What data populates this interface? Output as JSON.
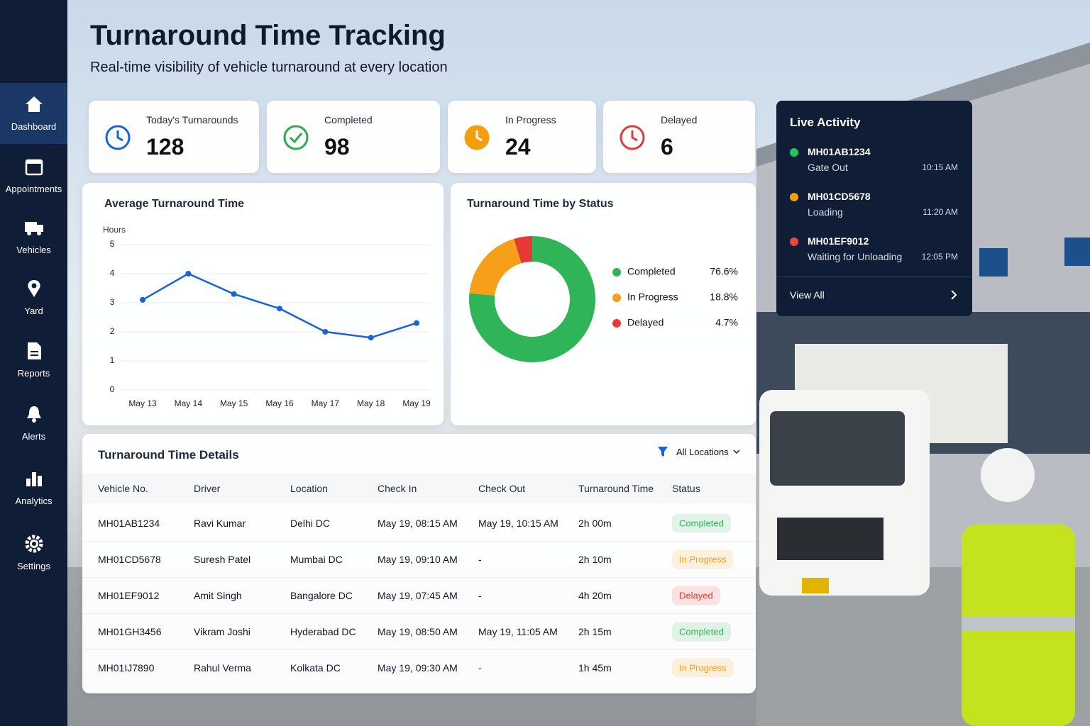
{
  "sidebar": {
    "items": [
      "Dashboard",
      "Appointments",
      "Vehicles",
      "Yard",
      "Reports",
      "Alerts",
      "Analytics",
      "Settings"
    ]
  },
  "header": {
    "title": "Turnaround Time Tracking",
    "subtitle": "Real-time visibility of vehicle turnaround at every location"
  },
  "kpis": [
    {
      "label": "Today's Turnarounds",
      "value": 128,
      "color": "#1565d8"
    },
    {
      "label": "Completed",
      "value": 98,
      "color": "#2fa84f"
    },
    {
      "label": "In Progress",
      "value": 24,
      "color": "#f59e0b"
    },
    {
      "label": "Delayed",
      "value": 6,
      "color": "#e03a3a"
    }
  ],
  "chart_data": [
    {
      "type": "line",
      "title": "Average Turnaround Time",
      "y_label": "Hours",
      "categories": [
        "May 13",
        "May 14",
        "May 15",
        "May 16",
        "May 17",
        "May 18",
        "May 19"
      ],
      "values": [
        3.1,
        4.0,
        3.3,
        2.8,
        2.0,
        1.8,
        2.3
      ],
      "color": "#1a63d6",
      "ylim": [
        0,
        5
      ],
      "yticks": [
        0,
        1,
        2,
        3,
        4,
        5
      ],
      "grid": true
    },
    {
      "type": "pie",
      "title": "Turnaround Time by Status",
      "categories": [
        "Completed",
        "In Progress",
        "Delayed"
      ],
      "values": [
        76.6,
        18.8,
        4.7
      ],
      "value_labels": [
        "76.6%",
        "18.8%",
        "4.7%"
      ],
      "colors": [
        "#2fb457",
        "#f6a01a",
        "#e53935"
      ],
      "donut": true
    }
  ],
  "live_activity": {
    "title": "Live Activity",
    "link": "View All",
    "items": [
      {
        "vehicle": "MH01AB1234",
        "status": "Gate Out",
        "time": "10:15 AM",
        "color": "#22c55e"
      },
      {
        "vehicle": "MH01CD5678",
        "status": "Loading",
        "time": "11:20 AM",
        "color": "#f59e0b"
      },
      {
        "vehicle": "MH01EF9012",
        "status": "Waiting for Unloading",
        "time": "12:05 PM",
        "color": "#ef4444"
      }
    ]
  },
  "table": {
    "title": "Turnaround Time Details",
    "filter": "All Locations",
    "columns": [
      "Vehicle No.",
      "Driver",
      "Location",
      "Check In",
      "Check Out",
      "Turnaround Time",
      "Status"
    ],
    "rows": [
      [
        "MH01AB1234",
        "Ravi Kumar",
        "Delhi DC",
        "May 19, 08:15 AM",
        "May 19, 10:15 AM",
        "2h 00m",
        "Completed"
      ],
      [
        "MH01CD5678",
        "Suresh Patel",
        "Mumbai DC",
        "May 19, 09:10 AM",
        "-",
        "2h 10m",
        "In Progress"
      ],
      [
        "MH01EF9012",
        "Amit Singh",
        "Bangalore DC",
        "May 19, 07:45 AM",
        "-",
        "4h 20m",
        "Delayed"
      ],
      [
        "MH01GH3456",
        "Vikram Joshi",
        "Hyderabad DC",
        "May 19, 08:50 AM",
        "May 19, 11:05 AM",
        "2h 15m",
        "Completed"
      ],
      [
        "MH01IJ7890",
        "Rahul Verma",
        "Kolkata DC",
        "May 19, 09:30 AM",
        "-",
        "1h 45m",
        "In Progress"
      ]
    ]
  }
}
